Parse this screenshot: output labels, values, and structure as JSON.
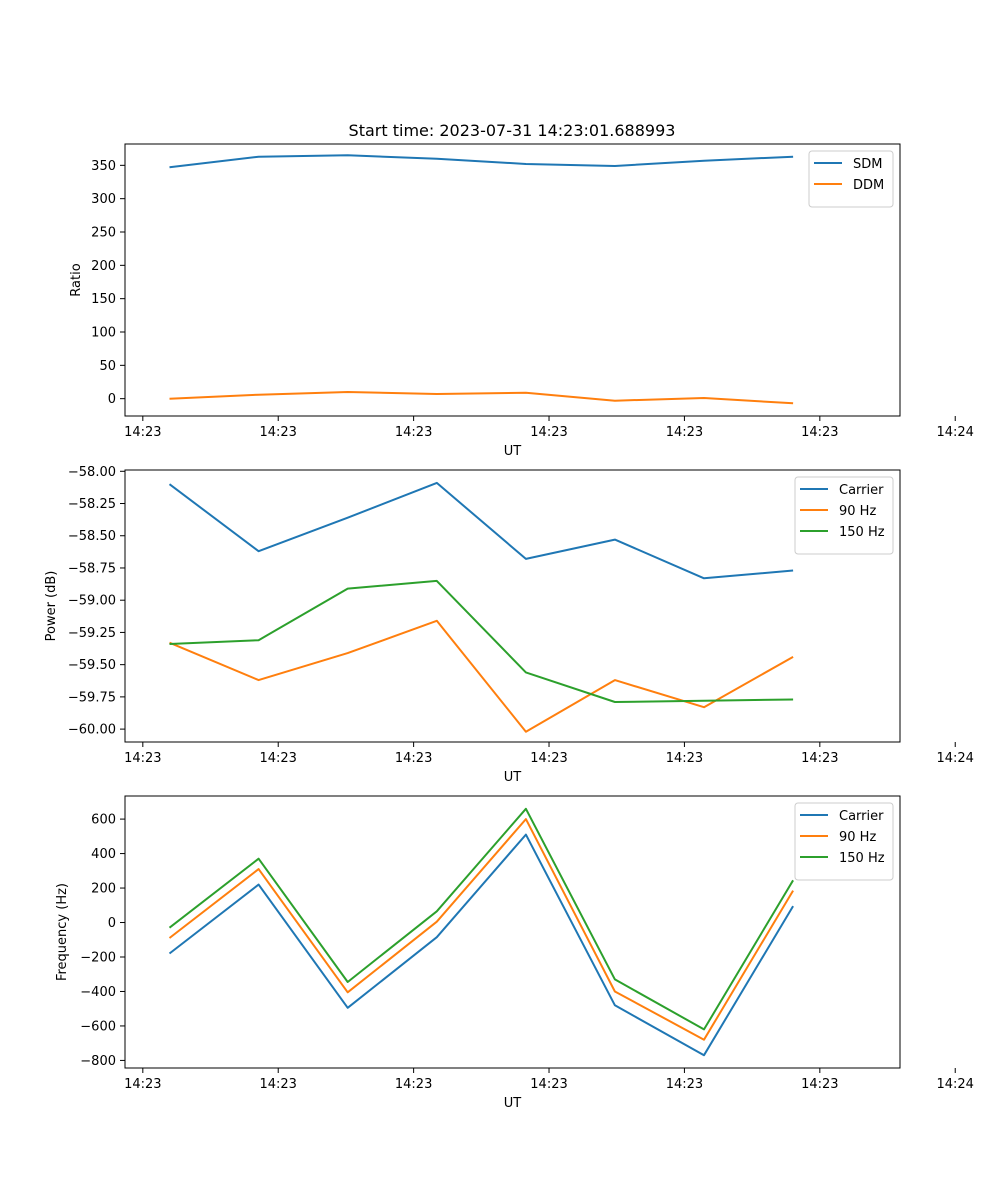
{
  "figure": {
    "title": "Start time: 2023-07-31 14:23:01.688993"
  },
  "colors": {
    "blue": "#1f77b4",
    "orange": "#ff7f0e",
    "green": "#2ca02c"
  },
  "chart_data": [
    {
      "type": "line",
      "title": "Start time: 2023-07-31 14:23:01.688993",
      "xlabel": "UT",
      "ylabel": "Ratio",
      "x": [
        1,
        2,
        3,
        4,
        5,
        6,
        7,
        8
      ],
      "xlim": [
        0.5,
        9.2
      ],
      "xticks": [
        0.7,
        2.22,
        3.74,
        5.26,
        6.78,
        8.3,
        9.82
      ],
      "xtick_labels": [
        "14:23",
        "14:23",
        "14:23",
        "14:23",
        "14:23",
        "14:23",
        "14:24"
      ],
      "ylim": [
        -26,
        382
      ],
      "yticks": [
        0,
        50,
        100,
        150,
        200,
        250,
        300,
        350
      ],
      "ytick_labels": [
        "0",
        "50",
        "100",
        "150",
        "200",
        "250",
        "300",
        "350"
      ],
      "legend": "top-right",
      "series": [
        {
          "name": "SDM",
          "color": "#1f77b4",
          "values": [
            347,
            363,
            365,
            360,
            352,
            349,
            357,
            363
          ]
        },
        {
          "name": "DDM",
          "color": "#ff7f0e",
          "values": [
            0,
            6,
            10,
            7,
            9,
            -3,
            1,
            -7
          ]
        }
      ]
    },
    {
      "type": "line",
      "title": "",
      "xlabel": "UT",
      "ylabel": "Power (dB)",
      "x": [
        1,
        2,
        3,
        4,
        5,
        6,
        7,
        8
      ],
      "xlim": [
        0.5,
        9.2
      ],
      "xticks": [
        0.7,
        2.22,
        3.74,
        5.26,
        6.78,
        8.3,
        9.82
      ],
      "xtick_labels": [
        "14:23",
        "14:23",
        "14:23",
        "14:23",
        "14:23",
        "14:23",
        "14:24"
      ],
      "ylim": [
        -60.1,
        -57.99
      ],
      "yticks": [
        -60.0,
        -59.75,
        -59.5,
        -59.25,
        -59.0,
        -58.75,
        -58.5,
        -58.25,
        -58.0
      ],
      "ytick_labels": [
        "−60.00",
        "−59.75",
        "−59.50",
        "−59.25",
        "−59.00",
        "−58.75",
        "−58.50",
        "−58.25",
        "−58.00"
      ],
      "legend": "top-right",
      "series": [
        {
          "name": "Carrier",
          "color": "#1f77b4",
          "values": [
            -58.1,
            -58.62,
            -58.36,
            -58.09,
            -58.68,
            -58.53,
            -58.83,
            -58.77
          ]
        },
        {
          "name": "90 Hz",
          "color": "#ff7f0e",
          "values": [
            -59.33,
            -59.62,
            -59.41,
            -59.16,
            -60.02,
            -59.62,
            -59.83,
            -59.44
          ]
        },
        {
          "name": "150 Hz",
          "color": "#2ca02c",
          "values": [
            -59.34,
            -59.31,
            -58.91,
            -58.85,
            -59.56,
            -59.79,
            -59.78,
            -59.77
          ]
        }
      ]
    },
    {
      "type": "line",
      "title": "",
      "xlabel": "UT",
      "ylabel": "Frequency (Hz)",
      "x": [
        1,
        2,
        3,
        4,
        5,
        6,
        7,
        8
      ],
      "xlim": [
        0.5,
        9.2
      ],
      "xticks": [
        0.7,
        2.22,
        3.74,
        5.26,
        6.78,
        8.3,
        9.82
      ],
      "xtick_labels": [
        "14:23",
        "14:23",
        "14:23",
        "14:23",
        "14:23",
        "14:23",
        "14:24"
      ],
      "ylim": [
        -844,
        734
      ],
      "yticks": [
        -800,
        -600,
        -400,
        -200,
        0,
        200,
        400,
        600
      ],
      "ytick_labels": [
        "−800",
        "−600",
        "−400",
        "−200",
        "0",
        "200",
        "400",
        "600"
      ],
      "legend": "top-right",
      "series": [
        {
          "name": "Carrier",
          "color": "#1f77b4",
          "values": [
            -180,
            220,
            -495,
            -85,
            510,
            -480,
            -770,
            95
          ]
        },
        {
          "name": "90 Hz",
          "color": "#ff7f0e",
          "values": [
            -90,
            310,
            -405,
            5,
            600,
            -400,
            -680,
            185
          ]
        },
        {
          "name": "150 Hz",
          "color": "#2ca02c",
          "values": [
            -30,
            370,
            -345,
            65,
            660,
            -330,
            -620,
            245
          ]
        }
      ]
    }
  ]
}
